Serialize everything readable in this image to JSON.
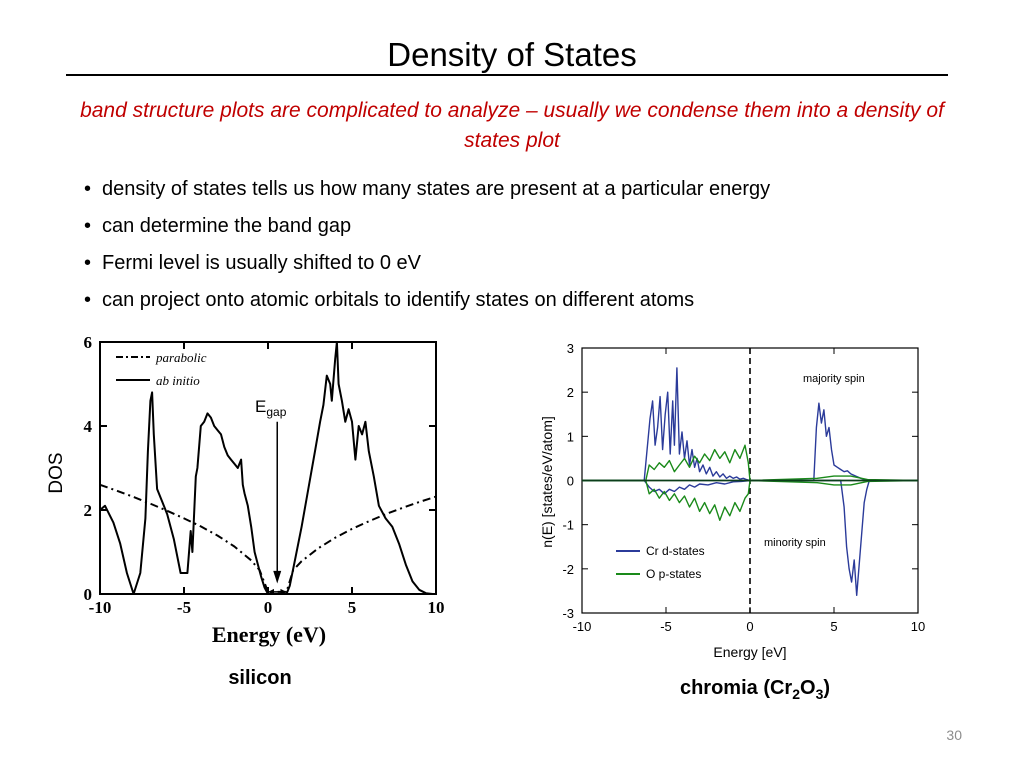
{
  "slide": {
    "title": "Density of States",
    "subtitle": "band structure plots are complicated to analyze – usually we condense them into a density of states plot",
    "bullets": [
      "density of states tells us how many states are present at a particular energy",
      "can determine the band gap",
      "Fermi level is usually shifted to 0 eV",
      "can project onto atomic orbitals to identify states on different atoms"
    ],
    "page_number": "30"
  },
  "colors": {
    "subtitle": "#c00000",
    "cr_d_states": "#2b3b9a",
    "o_p_states": "#1a8a1a",
    "page_number": "#8c8c8c"
  },
  "chart_data": [
    {
      "type": "line",
      "caption": "silicon",
      "xlabel": "Energy (eV)",
      "ylabel": "DOS",
      "xlim": [
        -10,
        10
      ],
      "ylim": [
        0,
        6
      ],
      "xticks": [
        "-10",
        "-5",
        "0",
        "5",
        "10"
      ],
      "yticks": [
        "0",
        "2",
        "4",
        "6"
      ],
      "legend": [
        "parabolic",
        "ab initio"
      ],
      "legend_position": "top-left",
      "annotation_main": "E",
      "annotation_sub": "gap",
      "gap": [
        0,
        1.1
      ],
      "series": [
        {
          "name": "parabolic",
          "style": "dash-dot",
          "x": [
            -10,
            -9,
            -8,
            -7,
            -6,
            -5,
            -4,
            -3,
            -2,
            -1,
            -0.5,
            0,
            1.1,
            1.5,
            2,
            3,
            4,
            5,
            6,
            7,
            8,
            9,
            10
          ],
          "y": [
            2.6,
            2.46,
            2.31,
            2.15,
            1.98,
            1.8,
            1.61,
            1.39,
            1.13,
            0.8,
            0.57,
            0.05,
            0.05,
            0.57,
            0.78,
            1.09,
            1.34,
            1.55,
            1.73,
            1.9,
            2.05,
            2.19,
            2.32
          ]
        },
        {
          "name": "ab initio",
          "style": "solid",
          "x": [
            -10,
            -9.7,
            -9.2,
            -8.8,
            -8.4,
            -8.0,
            -7.6,
            -7.3,
            -7.15,
            -7.0,
            -6.9,
            -6.8,
            -6.6,
            -6.3,
            -6.0,
            -5.6,
            -5.2,
            -4.8,
            -4.6,
            -4.5,
            -4.3,
            -4.2,
            -4.0,
            -3.8,
            -3.6,
            -3.4,
            -3.2,
            -3.0,
            -2.8,
            -2.6,
            -2.4,
            -2.2,
            -2.0,
            -1.8,
            -1.6,
            -1.5,
            -1.4,
            -1.2,
            -1.0,
            -0.8,
            -0.6,
            -0.4,
            -0.2,
            0.0,
            1.1,
            1.3,
            1.6,
            2.0,
            2.4,
            2.8,
            3.1,
            3.3,
            3.5,
            3.7,
            3.8,
            4.0,
            4.1,
            4.2,
            4.4,
            4.6,
            4.8,
            5.0,
            5.2,
            5.4,
            5.6,
            5.8,
            6.0,
            6.3,
            6.6,
            7.0,
            7.4,
            7.8,
            8.2,
            8.6,
            9.0,
            9.4,
            9.8,
            10
          ],
          "y": [
            2.0,
            2.1,
            1.7,
            1.2,
            0.5,
            0.0,
            0.5,
            1.8,
            3.4,
            4.6,
            4.8,
            3.8,
            2.5,
            2.2,
            1.9,
            1.3,
            0.5,
            0.5,
            1.5,
            1.0,
            2.8,
            3.0,
            4.0,
            4.1,
            4.3,
            4.2,
            4.0,
            3.9,
            3.8,
            3.5,
            3.3,
            3.2,
            3.1,
            3.0,
            3.2,
            2.6,
            2.4,
            2.1,
            1.6,
            1.0,
            0.7,
            0.4,
            0.15,
            0.0,
            0.0,
            0.2,
            0.8,
            1.6,
            2.5,
            3.4,
            4.1,
            4.5,
            5.2,
            5.0,
            4.6,
            5.6,
            6.0,
            5.0,
            4.6,
            4.1,
            4.4,
            4.1,
            3.2,
            4.0,
            3.8,
            4.1,
            3.4,
            2.8,
            2.1,
            1.8,
            1.6,
            1.2,
            0.7,
            0.3,
            0.1,
            0.02,
            0.0,
            0.0
          ]
        }
      ]
    },
    {
      "type": "line",
      "caption_main": "chromia (Cr",
      "caption_sub1": "2",
      "caption_mid": "O",
      "caption_sub2": "3",
      "caption_end": ")",
      "xlabel": "Energy [eV]",
      "ylabel": "n(E) [states/eV/atom]",
      "xlim": [
        -10,
        10
      ],
      "ylim": [
        -3,
        3
      ],
      "xticks": [
        "-10",
        "-5",
        "0",
        "5",
        "10"
      ],
      "yticks": [
        "-3",
        "-2",
        "-1",
        "0",
        "1",
        "2",
        "3"
      ],
      "fermi_level": 0,
      "annotations": [
        "majority spin",
        "minority spin"
      ],
      "legend": [
        "Cr d-states",
        "O p-states"
      ],
      "legend_position": "bottom-left",
      "series": [
        {
          "name": "Cr d-states (majority)",
          "x": [
            -10,
            -6.3,
            -6.1,
            -5.95,
            -5.8,
            -5.65,
            -5.5,
            -5.35,
            -5.2,
            -5.05,
            -4.9,
            -4.75,
            -4.6,
            -4.5,
            -4.35,
            -4.2,
            -4.05,
            -3.9,
            -3.75,
            -3.6,
            -3.45,
            -3.3,
            -3.15,
            -3.0,
            -2.8,
            -2.6,
            -2.4,
            -2.2,
            -2.0,
            -1.8,
            -1.6,
            -1.4,
            -1.2,
            -1.0,
            -0.8,
            -0.6,
            -0.4,
            -0.2,
            0,
            3.8,
            3.95,
            4.1,
            4.25,
            4.4,
            4.55,
            4.7,
            4.85,
            5.0,
            5.2,
            5.4,
            5.6,
            5.8,
            6.0,
            6.3,
            6.6,
            7.0,
            10
          ],
          "y": [
            0,
            0,
            0.8,
            1.4,
            1.8,
            0.8,
            1.2,
            1.9,
            0.7,
            1.5,
            2.0,
            0.6,
            1.8,
            0.8,
            2.55,
            0.6,
            1.1,
            0.5,
            0.9,
            0.35,
            0.7,
            0.3,
            0.5,
            0.2,
            0.35,
            0.15,
            0.3,
            0.1,
            0.2,
            0.08,
            0.15,
            0.05,
            0.1,
            0.05,
            0.08,
            0.03,
            0.05,
            0.02,
            0,
            0,
            1.2,
            1.75,
            1.3,
            1.6,
            1.0,
            1.2,
            0.7,
            0.35,
            0.3,
            0.25,
            0.2,
            0.22,
            0.15,
            0.1,
            0.05,
            0,
            0
          ]
        },
        {
          "name": "Cr d-states (minority)",
          "x": [
            -10,
            -6.3,
            -6.0,
            -5.7,
            -5.4,
            -5.1,
            -4.8,
            -4.5,
            -4.2,
            -3.9,
            -3.6,
            -3.3,
            -3.0,
            -2.5,
            -2.0,
            -1.5,
            -1.0,
            -0.5,
            0,
            5.4,
            5.6,
            5.75,
            5.9,
            6.05,
            6.2,
            6.35,
            6.5,
            6.65,
            6.8,
            6.95,
            7.1,
            10
          ],
          "y": [
            0,
            0,
            -0.15,
            -0.25,
            -0.2,
            -0.3,
            -0.2,
            -0.25,
            -0.15,
            -0.2,
            -0.1,
            -0.15,
            -0.08,
            -0.1,
            -0.05,
            -0.08,
            -0.03,
            -0.02,
            0,
            0,
            -0.6,
            -1.5,
            -2.0,
            -2.3,
            -1.8,
            -2.6,
            -1.9,
            -1.2,
            -0.5,
            -0.2,
            0,
            0
          ]
        },
        {
          "name": "O p-states (majority)",
          "x": [
            -10,
            -6.2,
            -6.0,
            -5.7,
            -5.4,
            -5.1,
            -4.8,
            -4.5,
            -4.2,
            -3.9,
            -3.6,
            -3.3,
            -3.0,
            -2.7,
            -2.4,
            -2.1,
            -1.8,
            -1.5,
            -1.2,
            -0.9,
            -0.6,
            -0.3,
            -0.1,
            0,
            4.0,
            5.0,
            6.0,
            7.0,
            10
          ],
          "y": [
            0,
            0,
            0.35,
            0.25,
            0.4,
            0.3,
            0.45,
            0.2,
            0.35,
            0.5,
            0.3,
            0.55,
            0.4,
            0.6,
            0.45,
            0.7,
            0.5,
            0.65,
            0.4,
            0.7,
            0.5,
            0.8,
            0.4,
            0,
            0.05,
            0.1,
            0.1,
            0.02,
            0
          ]
        },
        {
          "name": "O p-states (minority)",
          "x": [
            -10,
            -6.2,
            -6.0,
            -5.7,
            -5.4,
            -5.1,
            -4.8,
            -4.5,
            -4.2,
            -3.9,
            -3.6,
            -3.3,
            -3.0,
            -2.7,
            -2.4,
            -2.1,
            -1.8,
            -1.5,
            -1.2,
            -0.9,
            -0.6,
            -0.3,
            -0.1,
            0,
            4.0,
            5.0,
            6.0,
            7.0,
            10
          ],
          "y": [
            0,
            0,
            -0.3,
            -0.2,
            -0.4,
            -0.25,
            -0.45,
            -0.3,
            -0.5,
            -0.35,
            -0.6,
            -0.4,
            -0.7,
            -0.5,
            -0.75,
            -0.55,
            -0.9,
            -0.6,
            -0.8,
            -0.5,
            -0.7,
            -0.4,
            -0.3,
            0,
            -0.05,
            -0.1,
            -0.1,
            -0.02,
            0
          ]
        }
      ]
    }
  ]
}
